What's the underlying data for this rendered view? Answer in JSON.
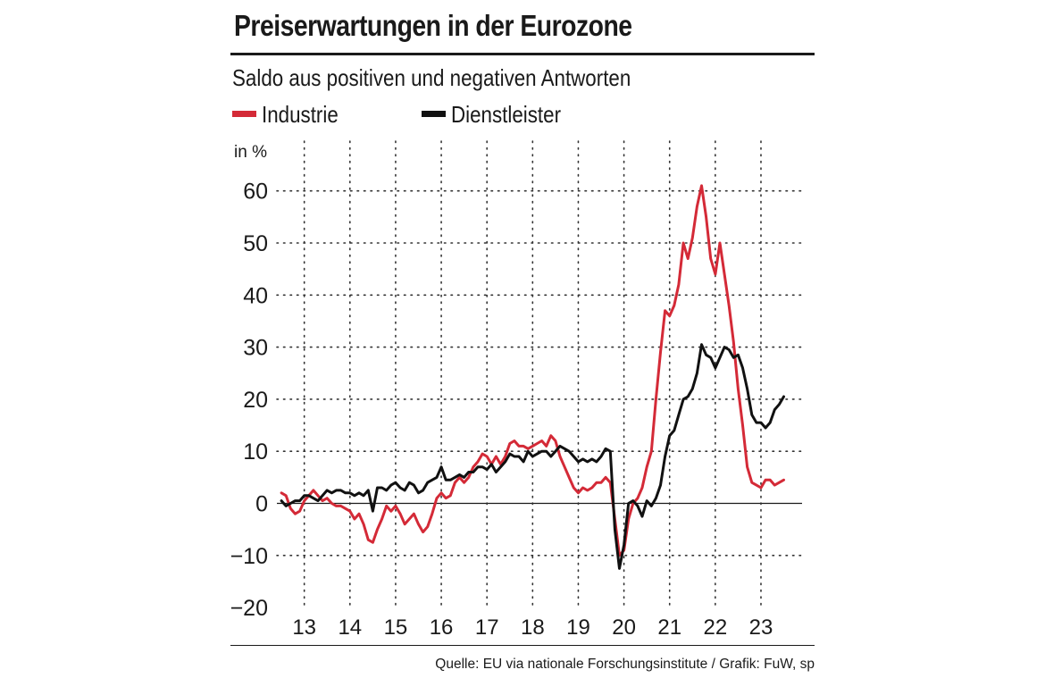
{
  "chart_data": {
    "type": "line",
    "title": "Preiserwartungen in der Eurozone",
    "subtitle": "Saldo aus positiven und negativen Antworten",
    "unit_label": "in %",
    "ylim": [
      -20,
      63
    ],
    "yticks": [
      -20,
      -10,
      0,
      10,
      20,
      30,
      40,
      50,
      60
    ],
    "ytick_labels": [
      "−20",
      "−10",
      "0",
      "10",
      "20",
      "30",
      "40",
      "50",
      "60"
    ],
    "xlim": [
      2012.4,
      2023.9
    ],
    "xtick_labels": [
      "13",
      "14",
      "15",
      "16",
      "17",
      "18",
      "19",
      "20",
      "21",
      "22",
      "23"
    ],
    "grid": true,
    "legend_position": "top-left",
    "colors": {
      "industrie": "#d42a37",
      "dienstleister": "#111111"
    },
    "series": [
      {
        "name": "Industrie",
        "points": [
          [
            2012.5,
            2
          ],
          [
            2012.6,
            1.5
          ],
          [
            2012.7,
            -1
          ],
          [
            2012.8,
            -2
          ],
          [
            2012.9,
            -1.5
          ],
          [
            2013.0,
            0.5
          ],
          [
            2013.1,
            1.5
          ],
          [
            2013.2,
            2.5
          ],
          [
            2013.3,
            1.5
          ],
          [
            2013.4,
            0.5
          ],
          [
            2013.5,
            1
          ],
          [
            2013.6,
            0
          ],
          [
            2013.7,
            -0.5
          ],
          [
            2013.8,
            -0.5
          ],
          [
            2013.9,
            -1
          ],
          [
            2014.0,
            -1.5
          ],
          [
            2014.1,
            -3
          ],
          [
            2014.2,
            -2
          ],
          [
            2014.3,
            -4
          ],
          [
            2014.4,
            -7
          ],
          [
            2014.5,
            -7.5
          ],
          [
            2014.6,
            -5
          ],
          [
            2014.7,
            -3
          ],
          [
            2014.8,
            -0.5
          ],
          [
            2014.9,
            -1.5
          ],
          [
            2015.0,
            -0.5
          ],
          [
            2015.1,
            -2
          ],
          [
            2015.2,
            -4
          ],
          [
            2015.3,
            -3
          ],
          [
            2015.4,
            -2
          ],
          [
            2015.5,
            -4
          ],
          [
            2015.6,
            -5.5
          ],
          [
            2015.7,
            -4.5
          ],
          [
            2015.8,
            -2
          ],
          [
            2015.9,
            1
          ],
          [
            2016.0,
            2
          ],
          [
            2016.1,
            1
          ],
          [
            2016.2,
            1.5
          ],
          [
            2016.3,
            4
          ],
          [
            2016.4,
            5
          ],
          [
            2016.5,
            4
          ],
          [
            2016.6,
            5
          ],
          [
            2016.7,
            7
          ],
          [
            2016.8,
            8
          ],
          [
            2016.9,
            9.5
          ],
          [
            2017.0,
            9
          ],
          [
            2017.1,
            7.5
          ],
          [
            2017.2,
            9
          ],
          [
            2017.3,
            7.5
          ],
          [
            2017.4,
            9
          ],
          [
            2017.5,
            11.5
          ],
          [
            2017.6,
            12
          ],
          [
            2017.7,
            11
          ],
          [
            2017.8,
            11
          ],
          [
            2017.9,
            10.5
          ],
          [
            2018.0,
            11
          ],
          [
            2018.1,
            11.5
          ],
          [
            2018.2,
            12
          ],
          [
            2018.3,
            11
          ],
          [
            2018.4,
            13
          ],
          [
            2018.5,
            12
          ],
          [
            2018.6,
            9
          ],
          [
            2018.7,
            7
          ],
          [
            2018.8,
            5
          ],
          [
            2018.9,
            3
          ],
          [
            2019.0,
            2
          ],
          [
            2019.1,
            3
          ],
          [
            2019.2,
            2.5
          ],
          [
            2019.3,
            3
          ],
          [
            2019.4,
            4
          ],
          [
            2019.5,
            4
          ],
          [
            2019.6,
            5
          ],
          [
            2019.7,
            4
          ],
          [
            2019.8,
            -3
          ],
          [
            2019.9,
            -10
          ],
          [
            2020.0,
            -9
          ],
          [
            2020.1,
            -3
          ],
          [
            2020.2,
            0
          ],
          [
            2020.3,
            1
          ],
          [
            2020.4,
            3
          ],
          [
            2020.5,
            7
          ],
          [
            2020.6,
            10
          ],
          [
            2020.7,
            20
          ],
          [
            2020.8,
            29
          ],
          [
            2020.9,
            37
          ],
          [
            2021.0,
            36
          ],
          [
            2021.1,
            38
          ],
          [
            2021.2,
            42
          ],
          [
            2021.3,
            50
          ],
          [
            2021.4,
            47
          ],
          [
            2021.5,
            51
          ],
          [
            2021.6,
            57
          ],
          [
            2021.7,
            61
          ],
          [
            2021.8,
            55
          ],
          [
            2021.9,
            47
          ],
          [
            2022.0,
            44
          ],
          [
            2022.1,
            50
          ],
          [
            2022.2,
            44
          ],
          [
            2022.3,
            38
          ],
          [
            2022.4,
            31
          ],
          [
            2022.5,
            22
          ],
          [
            2022.6,
            15
          ],
          [
            2022.7,
            7
          ],
          [
            2022.8,
            4
          ],
          [
            2022.9,
            3.5
          ],
          [
            2023.0,
            3
          ],
          [
            2023.1,
            4.5
          ],
          [
            2023.2,
            4.5
          ],
          [
            2023.3,
            3.5
          ],
          [
            2023.4,
            4
          ],
          [
            2023.5,
            4.5
          ]
        ]
      },
      {
        "name": "Dienstleister",
        "points": [
          [
            2012.5,
            0.5
          ],
          [
            2012.6,
            -0.5
          ],
          [
            2012.7,
            0
          ],
          [
            2012.8,
            0.5
          ],
          [
            2012.9,
            0.5
          ],
          [
            2013.0,
            1.5
          ],
          [
            2013.1,
            1.5
          ],
          [
            2013.2,
            1
          ],
          [
            2013.3,
            0.5
          ],
          [
            2013.4,
            1.5
          ],
          [
            2013.5,
            2.5
          ],
          [
            2013.6,
            2
          ],
          [
            2013.7,
            2.5
          ],
          [
            2013.8,
            2.5
          ],
          [
            2013.9,
            2
          ],
          [
            2014.0,
            2
          ],
          [
            2014.1,
            1.5
          ],
          [
            2014.2,
            2
          ],
          [
            2014.3,
            1.5
          ],
          [
            2014.4,
            2.5
          ],
          [
            2014.5,
            -1.5
          ],
          [
            2014.6,
            3
          ],
          [
            2014.7,
            3
          ],
          [
            2014.8,
            2.5
          ],
          [
            2014.9,
            3.5
          ],
          [
            2015.0,
            4
          ],
          [
            2015.1,
            3
          ],
          [
            2015.2,
            2.5
          ],
          [
            2015.3,
            4
          ],
          [
            2015.4,
            3.5
          ],
          [
            2015.5,
            2
          ],
          [
            2015.6,
            2.5
          ],
          [
            2015.7,
            4
          ],
          [
            2015.8,
            4.5
          ],
          [
            2015.9,
            5
          ],
          [
            2016.0,
            7
          ],
          [
            2016.1,
            4.5
          ],
          [
            2016.2,
            4.5
          ],
          [
            2016.3,
            5
          ],
          [
            2016.4,
            5.5
          ],
          [
            2016.5,
            5
          ],
          [
            2016.6,
            6
          ],
          [
            2016.7,
            6
          ],
          [
            2016.8,
            7
          ],
          [
            2016.9,
            7
          ],
          [
            2017.0,
            6.5
          ],
          [
            2017.1,
            7.5
          ],
          [
            2017.2,
            6
          ],
          [
            2017.3,
            7
          ],
          [
            2017.4,
            8
          ],
          [
            2017.5,
            9.5
          ],
          [
            2017.6,
            9
          ],
          [
            2017.7,
            9
          ],
          [
            2017.8,
            8
          ],
          [
            2017.9,
            10
          ],
          [
            2018.0,
            9
          ],
          [
            2018.1,
            9.5
          ],
          [
            2018.2,
            10
          ],
          [
            2018.3,
            10
          ],
          [
            2018.4,
            9
          ],
          [
            2018.5,
            10
          ],
          [
            2018.6,
            11
          ],
          [
            2018.7,
            10.5
          ],
          [
            2018.8,
            10
          ],
          [
            2018.9,
            9
          ],
          [
            2019.0,
            8
          ],
          [
            2019.1,
            8.5
          ],
          [
            2019.2,
            8
          ],
          [
            2019.3,
            8.5
          ],
          [
            2019.4,
            8
          ],
          [
            2019.5,
            9
          ],
          [
            2019.6,
            10.5
          ],
          [
            2019.7,
            10
          ],
          [
            2019.8,
            -5
          ],
          [
            2019.9,
            -12.5
          ],
          [
            2020.0,
            -8
          ],
          [
            2020.1,
            0
          ],
          [
            2020.2,
            0.5
          ],
          [
            2020.3,
            -0.5
          ],
          [
            2020.4,
            -2.5
          ],
          [
            2020.5,
            0.5
          ],
          [
            2020.6,
            -0.5
          ],
          [
            2020.7,
            1
          ],
          [
            2020.8,
            3.5
          ],
          [
            2020.9,
            9
          ],
          [
            2021.0,
            13
          ],
          [
            2021.1,
            14
          ],
          [
            2021.2,
            17
          ],
          [
            2021.3,
            20
          ],
          [
            2021.4,
            20.5
          ],
          [
            2021.5,
            22
          ],
          [
            2021.6,
            25
          ],
          [
            2021.7,
            30.5
          ],
          [
            2021.8,
            28.5
          ],
          [
            2021.9,
            28
          ],
          [
            2022.0,
            26
          ],
          [
            2022.1,
            28
          ],
          [
            2022.2,
            30
          ],
          [
            2022.3,
            29.5
          ],
          [
            2022.4,
            28
          ],
          [
            2022.5,
            28.5
          ],
          [
            2022.6,
            26
          ],
          [
            2022.7,
            22
          ],
          [
            2022.8,
            17
          ],
          [
            2022.9,
            15.5
          ],
          [
            2023.0,
            15.5
          ],
          [
            2023.1,
            14.5
          ],
          [
            2023.2,
            15.5
          ],
          [
            2023.3,
            18
          ],
          [
            2023.4,
            19
          ],
          [
            2023.5,
            20.5
          ]
        ]
      }
    ],
    "source": "Quelle: EU via nationale Forschungsinstitute / Grafik: FuW, sp"
  }
}
